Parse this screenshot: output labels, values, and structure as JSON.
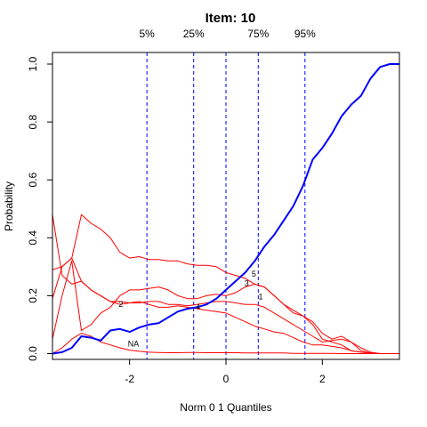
{
  "chart_data": {
    "type": "line",
    "title": "Item:  10",
    "xlabel": "Norm 0 1 Quantiles",
    "ylabel": "Probability",
    "xlim": [
      -3.6,
      3.6
    ],
    "ylim": [
      -0.02,
      1.04
    ],
    "x_ticks": [
      -2,
      0,
      2
    ],
    "x_tick_labels": [
      "-2",
      "0",
      "2"
    ],
    "y_ticks": [
      0.0,
      0.2,
      0.4,
      0.6,
      0.8,
      1.0
    ],
    "y_tick_labels": [
      "0.0",
      "0.2",
      "0.4",
      "0.6",
      "0.8",
      "1.0"
    ],
    "quantiles": [
      {
        "label": "5%",
        "x": -1.64
      },
      {
        "label": "25%",
        "x": -0.67
      },
      {
        "label": "",
        "x": 0.0
      },
      {
        "label": "75%",
        "x": 0.67
      },
      {
        "label": "95%",
        "x": 1.64
      }
    ],
    "colors": {
      "correct": "#0000ff",
      "options": "#ff0000",
      "quantile_lines": "#0000ff"
    },
    "series": [
      {
        "label": "",
        "role": "correct",
        "x": [
          -3.6,
          -3.4,
          -3.2,
          -3.0,
          -2.8,
          -2.6,
          -2.4,
          -2.2,
          -2.0,
          -1.8,
          -1.6,
          -1.4,
          -1.2,
          -1.0,
          -0.8,
          -0.6,
          -0.4,
          -0.2,
          0.0,
          0.2,
          0.4,
          0.6,
          0.8,
          1.0,
          1.2,
          1.4,
          1.6,
          1.8,
          2.0,
          2.2,
          2.4,
          2.6,
          2.8,
          3.0,
          3.2,
          3.4,
          3.6
        ],
        "y": [
          0.0,
          0.005,
          0.02,
          0.06,
          0.055,
          0.045,
          0.08,
          0.085,
          0.075,
          0.09,
          0.1,
          0.105,
          0.125,
          0.145,
          0.155,
          0.16,
          0.17,
          0.19,
          0.22,
          0.25,
          0.28,
          0.32,
          0.37,
          0.41,
          0.46,
          0.51,
          0.58,
          0.67,
          0.71,
          0.76,
          0.82,
          0.86,
          0.89,
          0.95,
          0.99,
          1.0,
          1.0
        ]
      },
      {
        "label": "1",
        "role": "option",
        "x": [
          -3.6,
          -3.4,
          -3.2,
          -3.0,
          -2.8,
          -2.6,
          -2.4,
          -2.2,
          -2.0,
          -1.8,
          -1.6,
          -1.4,
          -1.2,
          -1.0,
          -0.8,
          -0.6,
          -0.4,
          -0.2,
          0.0,
          0.2,
          0.4,
          0.6,
          0.8,
          1.0,
          1.2,
          1.4,
          1.6,
          1.8,
          2.0,
          2.2,
          2.4,
          2.6,
          2.8,
          3.0,
          3.2,
          3.4,
          3.6
        ],
        "y": [
          0.29,
          0.3,
          0.33,
          0.48,
          0.45,
          0.43,
          0.4,
          0.35,
          0.33,
          0.335,
          0.325,
          0.325,
          0.32,
          0.32,
          0.31,
          0.305,
          0.305,
          0.3,
          0.28,
          0.27,
          0.26,
          0.24,
          0.23,
          0.2,
          0.17,
          0.14,
          0.13,
          0.1,
          0.05,
          0.04,
          0.03,
          0.01,
          0.005,
          0.002,
          0.0,
          0.0,
          0.0
        ]
      },
      {
        "label": "2",
        "role": "option",
        "x": [
          -3.6,
          -3.4,
          -3.2,
          -3.0,
          -2.8,
          -2.6,
          -2.4,
          -2.2,
          -2.0,
          -1.8,
          -1.6,
          -1.4,
          -1.2,
          -1.0,
          -0.8,
          -0.6,
          -0.4,
          -0.2,
          0.0,
          0.2,
          0.4,
          0.6,
          0.8,
          1.0,
          1.2,
          1.4,
          1.6,
          1.8,
          2.0,
          2.2,
          2.4,
          2.6,
          2.8,
          3.0,
          3.2,
          3.4,
          3.6
        ],
        "y": [
          0.19,
          0.3,
          0.33,
          0.25,
          0.22,
          0.2,
          0.18,
          0.17,
          0.175,
          0.18,
          0.17,
          0.16,
          0.16,
          0.165,
          0.16,
          0.155,
          0.15,
          0.145,
          0.14,
          0.125,
          0.11,
          0.095,
          0.085,
          0.075,
          0.07,
          0.055,
          0.04,
          0.03,
          0.03,
          0.025,
          0.02,
          0.01,
          0.005,
          0.002,
          0.0,
          0.0,
          0.0
        ]
      },
      {
        "label": "3",
        "role": "option",
        "x": [
          -3.6,
          -3.4,
          -3.2,
          -3.0,
          -2.8,
          -2.6,
          -2.4,
          -2.2,
          -2.0,
          -1.8,
          -1.6,
          -1.4,
          -1.2,
          -1.0,
          -0.8,
          -0.6,
          -0.4,
          -0.2,
          0.0,
          0.2,
          0.4,
          0.6,
          0.8,
          1.0,
          1.2,
          1.4,
          1.6,
          1.8,
          2.0,
          2.2,
          2.4,
          2.6,
          2.8,
          3.0,
          3.2,
          3.4,
          3.6
        ],
        "y": [
          0.48,
          0.27,
          0.24,
          0.25,
          0.22,
          0.2,
          0.18,
          0.18,
          0.175,
          0.175,
          0.18,
          0.18,
          0.17,
          0.17,
          0.165,
          0.17,
          0.175,
          0.18,
          0.18,
          0.175,
          0.17,
          0.17,
          0.16,
          0.14,
          0.12,
          0.1,
          0.08,
          0.06,
          0.04,
          0.045,
          0.05,
          0.04,
          0.02,
          0.005,
          0.0,
          0.0,
          0.0
        ]
      },
      {
        "label": "5",
        "role": "option",
        "x": [
          -3.6,
          -3.4,
          -3.2,
          -3.0,
          -2.8,
          -2.6,
          -2.4,
          -2.2,
          -2.0,
          -1.8,
          -1.6,
          -1.4,
          -1.2,
          -1.0,
          -0.8,
          -0.6,
          -0.4,
          -0.2,
          0.0,
          0.2,
          0.4,
          0.6,
          0.8,
          1.0,
          1.2,
          1.4,
          1.6,
          1.8,
          2.0,
          2.2,
          2.4,
          2.6,
          2.8,
          3.0,
          3.2,
          3.4,
          3.6
        ],
        "y": [
          0.05,
          0.2,
          0.32,
          0.08,
          0.1,
          0.14,
          0.16,
          0.2,
          0.22,
          0.22,
          0.225,
          0.23,
          0.22,
          0.2,
          0.19,
          0.19,
          0.2,
          0.205,
          0.2,
          0.21,
          0.23,
          0.24,
          0.23,
          0.2,
          0.17,
          0.15,
          0.13,
          0.11,
          0.07,
          0.05,
          0.06,
          0.04,
          0.01,
          0.002,
          0.0,
          0.0,
          0.0
        ]
      },
      {
        "label": "NA",
        "role": "option",
        "x": [
          -3.6,
          -3.4,
          -3.2,
          -3.0,
          -2.8,
          -2.6,
          -2.4,
          -2.2,
          -2.0,
          -1.8,
          -1.6,
          -1.4,
          -1.2,
          -1.0,
          -0.8,
          -0.6,
          -0.4,
          -0.2,
          0.0,
          0.2,
          0.4,
          0.6,
          0.8,
          1.0,
          1.2,
          1.4,
          1.6,
          1.8,
          2.0,
          2.2,
          2.4,
          2.6,
          2.8,
          3.0,
          3.2,
          3.4,
          3.6
        ],
        "y": [
          0.0,
          0.02,
          0.05,
          0.07,
          0.06,
          0.04,
          0.03,
          0.02,
          0.012,
          0.008,
          0.005,
          0.004,
          0.003,
          0.003,
          0.004,
          0.004,
          0.003,
          0.003,
          0.003,
          0.003,
          0.002,
          0.002,
          0.002,
          0.002,
          0.002,
          0.001,
          0.001,
          0.001,
          0.001,
          0.001,
          0.0,
          0.0,
          0.0,
          0.0,
          0.0,
          0.0,
          0.0
        ]
      }
    ],
    "curve_labels": [
      {
        "text": "5",
        "x": 0.58,
        "y": 0.265
      },
      {
        "text": "3",
        "x": 0.43,
        "y": 0.233
      },
      {
        "text": "1",
        "x": 0.72,
        "y": 0.187
      },
      {
        "text": "2",
        "x": -2.18,
        "y": 0.162
      },
      {
        "text": "4",
        "x": -0.58,
        "y": 0.152
      },
      {
        "text": "NA",
        "x": -1.92,
        "y": 0.024
      }
    ]
  }
}
